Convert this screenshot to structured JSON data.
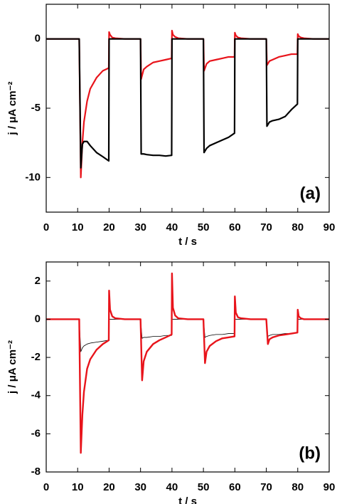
{
  "chart_data": [
    {
      "type": "line",
      "xlabel": "t  / s",
      "ylabel": "j / μA cm⁻²",
      "annotation": "(a)",
      "xlim": [
        0,
        90
      ],
      "ylim": [
        -12.5,
        2.5
      ],
      "xticks": [
        0,
        10,
        20,
        30,
        40,
        50,
        60,
        70,
        80,
        90
      ],
      "yticks": [
        -10,
        -5,
        0
      ],
      "grid": false,
      "x": [
        0,
        10,
        10.5,
        11,
        11.5,
        12,
        13,
        14,
        16,
        18,
        19.9,
        20,
        20.3,
        21,
        22,
        25,
        30,
        30.2,
        31,
        32,
        34,
        36,
        38,
        39.9,
        40,
        40.3,
        41,
        42,
        45,
        50,
        50.2,
        51,
        52,
        54,
        56,
        58,
        59.9,
        60,
        60.3,
        61,
        62,
        65,
        70,
        70.2,
        71,
        72,
        74,
        76,
        78,
        79.9,
        80,
        80.3,
        81,
        82,
        85,
        90
      ],
      "series": [
        {
          "color": "#e8141b",
          "width": 2.2,
          "values": [
            0,
            0,
            0,
            -10,
            -7.5,
            -6,
            -4.5,
            -3.6,
            -2.8,
            -2.3,
            -2.1,
            0.5,
            0.3,
            0.1,
            0.05,
            0,
            0,
            -2.9,
            -2.2,
            -2,
            -1.7,
            -1.6,
            -1.5,
            -1.4,
            0.6,
            0.3,
            0.15,
            0.05,
            0,
            0,
            -2.3,
            -1.8,
            -1.6,
            -1.5,
            -1.4,
            -1.3,
            -1.3,
            0.45,
            0.25,
            0.1,
            0.05,
            0,
            0,
            -1.9,
            -1.6,
            -1.5,
            -1.3,
            -1.2,
            -1.1,
            -1.1,
            0.35,
            0.2,
            0.1,
            0.05,
            0,
            0
          ]
        },
        {
          "color": "#000000",
          "width": 2.2,
          "values": [
            0,
            0,
            0,
            -9.3,
            -7.6,
            -7.4,
            -7.4,
            -7.7,
            -8.2,
            -8.5,
            -8.8,
            0,
            0,
            0,
            0,
            0,
            0,
            -8.3,
            -8.3,
            -8.35,
            -8.4,
            -8.4,
            -8.45,
            -8.4,
            0,
            0,
            0,
            0,
            0,
            0,
            -8.2,
            -7.9,
            -7.7,
            -7.5,
            -7.3,
            -7.1,
            -6.8,
            0,
            0,
            0,
            0,
            0,
            0,
            -6.3,
            -6.0,
            -5.9,
            -5.8,
            -5.6,
            -5.1,
            -4.7,
            0,
            0,
            0,
            0,
            0,
            0
          ]
        }
      ]
    },
    {
      "type": "line",
      "xlabel": "t  / s",
      "ylabel": "j / μA cm⁻²",
      "annotation": "(b)",
      "xlim": [
        0,
        90
      ],
      "ylim": [
        -8,
        3
      ],
      "xticks": [
        0,
        10,
        20,
        30,
        40,
        50,
        60,
        70,
        80,
        90
      ],
      "yticks": [
        -8,
        -6,
        -4,
        -2,
        0,
        2
      ],
      "grid": false,
      "x": [
        0,
        10,
        10.5,
        11,
        11.5,
        12,
        13,
        14,
        16,
        18,
        19.9,
        20,
        20.3,
        21,
        22,
        25,
        30,
        30.5,
        31,
        32,
        34,
        36,
        38,
        39.9,
        40,
        40.3,
        41,
        42,
        45,
        50,
        50.5,
        51,
        52,
        54,
        56,
        58,
        59.9,
        60,
        60.3,
        61,
        62,
        65,
        70,
        70.5,
        71,
        72,
        74,
        76,
        78,
        79.9,
        80,
        80.3,
        81,
        82,
        85,
        90
      ],
      "series": [
        {
          "color": "#000000",
          "width": 0.8,
          "values": [
            0,
            0,
            0,
            -1.7,
            -1.5,
            -1.4,
            -1.3,
            -1.25,
            -1.2,
            -1.15,
            -1.1,
            0,
            0,
            0,
            0,
            0,
            0,
            -1.0,
            -0.95,
            -0.95,
            -0.9,
            -0.9,
            -0.85,
            -0.85,
            0,
            0,
            0,
            0,
            0,
            0,
            -0.95,
            -0.9,
            -0.85,
            -0.8,
            -0.8,
            -0.75,
            -0.75,
            0,
            0,
            0,
            0,
            0,
            0,
            -0.9,
            -0.85,
            -0.8,
            -0.8,
            -0.75,
            -0.75,
            -0.7,
            0,
            0,
            0,
            0,
            0,
            0
          ]
        },
        {
          "color": "#e8141b",
          "width": 2.4,
          "values": [
            0,
            0,
            0,
            -7,
            -5,
            -3.8,
            -2.6,
            -2.1,
            -1.6,
            -1.3,
            -1.1,
            1.5,
            0.5,
            0.15,
            0.05,
            0,
            0,
            -3.2,
            -2.2,
            -1.7,
            -1.3,
            -1.1,
            -0.95,
            -0.8,
            2.4,
            0.6,
            0.2,
            0.05,
            0,
            0,
            -2.3,
            -1.7,
            -1.4,
            -1.15,
            -1.0,
            -0.95,
            -0.9,
            1.2,
            0.35,
            0.1,
            0.05,
            0,
            0,
            -1.3,
            -1.05,
            -0.95,
            -0.85,
            -0.8,
            -0.75,
            -0.7,
            0.5,
            0.15,
            0.05,
            0,
            0,
            0
          ]
        }
      ]
    }
  ]
}
